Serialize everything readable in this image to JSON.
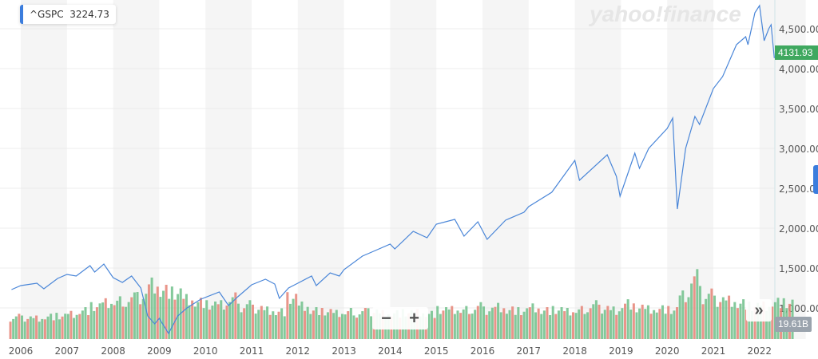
{
  "logo_text": "yahoo!finance",
  "legend": {
    "symbol": "^GSPC",
    "value": "3224.73"
  },
  "price_tag": "4131.93",
  "volume_tag": "19.61B",
  "controls": {
    "zoom_out": "−",
    "zoom_in": "+",
    "expand": "»"
  },
  "colors": {
    "line": "#4a86d8",
    "up": "#6fbf8a",
    "down": "#e58275",
    "band": "#f5f5f5",
    "price_tag": "#3fa85f"
  },
  "chart_data": {
    "type": "line",
    "title": "",
    "y_ticks": [
      "1,000.00",
      "1,500.00",
      "2,000.00",
      "2,500.00",
      "3,000.00",
      "3,500.00",
      "4,000.00",
      "4,500.00"
    ],
    "y_tick_values": [
      1000,
      1500,
      2000,
      2500,
      3000,
      3500,
      4000,
      4500
    ],
    "x_ticks": [
      "2006",
      "2007",
      "2008",
      "2009",
      "2010",
      "2011",
      "2012",
      "2013",
      "2014",
      "2015",
      "2016",
      "2017",
      "2018",
      "2019",
      "2020",
      "2021",
      "2022"
    ],
    "grid": true,
    "price_series": [
      [
        2005.8,
        1230
      ],
      [
        2006.0,
        1280
      ],
      [
        2006.35,
        1310
      ],
      [
        2006.5,
        1240
      ],
      [
        2006.8,
        1370
      ],
      [
        2007.0,
        1420
      ],
      [
        2007.2,
        1400
      ],
      [
        2007.5,
        1530
      ],
      [
        2007.6,
        1450
      ],
      [
        2007.8,
        1550
      ],
      [
        2008.0,
        1380
      ],
      [
        2008.2,
        1320
      ],
      [
        2008.4,
        1400
      ],
      [
        2008.6,
        1250
      ],
      [
        2008.75,
        900
      ],
      [
        2008.9,
        800
      ],
      [
        2009.0,
        870
      ],
      [
        2009.2,
        680
      ],
      [
        2009.4,
        900
      ],
      [
        2009.6,
        1000
      ],
      [
        2009.9,
        1110
      ],
      [
        2010.3,
        1200
      ],
      [
        2010.5,
        1030
      ],
      [
        2010.7,
        1140
      ],
      [
        2011.0,
        1290
      ],
      [
        2011.3,
        1360
      ],
      [
        2011.5,
        1300
      ],
      [
        2011.6,
        1120
      ],
      [
        2011.8,
        1250
      ],
      [
        2012.0,
        1310
      ],
      [
        2012.3,
        1400
      ],
      [
        2012.4,
        1280
      ],
      [
        2012.7,
        1440
      ],
      [
        2012.9,
        1400
      ],
      [
        2013.0,
        1480
      ],
      [
        2013.4,
        1650
      ],
      [
        2013.6,
        1700
      ],
      [
        2014.0,
        1800
      ],
      [
        2014.1,
        1740
      ],
      [
        2014.5,
        1960
      ],
      [
        2014.8,
        1880
      ],
      [
        2015.0,
        2050
      ],
      [
        2015.4,
        2110
      ],
      [
        2015.6,
        1900
      ],
      [
        2015.9,
        2080
      ],
      [
        2016.1,
        1860
      ],
      [
        2016.5,
        2100
      ],
      [
        2016.9,
        2200
      ],
      [
        2017.0,
        2270
      ],
      [
        2017.5,
        2450
      ],
      [
        2018.0,
        2850
      ],
      [
        2018.1,
        2600
      ],
      [
        2018.7,
        2920
      ],
      [
        2018.9,
        2650
      ],
      [
        2018.98,
        2400
      ],
      [
        2019.3,
        2940
      ],
      [
        2019.4,
        2750
      ],
      [
        2019.6,
        3000
      ],
      [
        2020.0,
        3250
      ],
      [
        2020.12,
        3380
      ],
      [
        2020.22,
        2240
      ],
      [
        2020.4,
        3000
      ],
      [
        2020.6,
        3400
      ],
      [
        2020.7,
        3300
      ],
      [
        2021.0,
        3750
      ],
      [
        2021.2,
        3900
      ],
      [
        2021.5,
        4300
      ],
      [
        2021.7,
        4400
      ],
      [
        2021.75,
        4300
      ],
      [
        2021.9,
        4700
      ],
      [
        2022.0,
        4790
      ],
      [
        2022.1,
        4350
      ],
      [
        2022.2,
        4500
      ],
      [
        2022.25,
        4550
      ],
      [
        2022.32,
        4132
      ]
    ],
    "volume_unit": "B",
    "volume_start": 2005.75,
    "volume_step": 0.25,
    "volume_series": [
      13,
      13,
      13,
      14,
      14,
      15,
      17,
      19,
      21,
      22,
      24,
      26,
      34,
      30,
      28,
      24,
      22,
      20,
      20,
      24,
      20,
      19,
      18,
      17,
      25,
      20,
      17,
      16,
      15,
      16,
      16,
      17,
      16,
      16,
      16,
      16,
      15,
      17,
      17,
      17,
      19,
      18,
      20,
      18,
      17,
      19,
      17,
      17,
      16,
      17,
      20,
      19,
      18,
      22,
      19,
      18,
      18,
      17,
      25,
      36,
      26,
      24,
      24,
      22,
      20,
      20,
      22,
      21
    ]
  }
}
